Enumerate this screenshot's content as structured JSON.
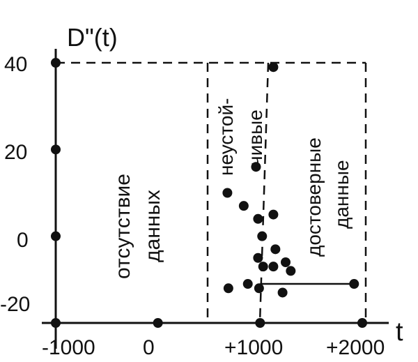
{
  "chart_data": {
    "type": "scatter",
    "ylabel": "D\"(t)",
    "xlabel": "t",
    "x_ticks": [
      "-1000",
      "0",
      "+1000",
      "+2000"
    ],
    "y_ticks": [
      "40",
      "20",
      "0",
      "-20"
    ],
    "xlim": [
      -1000,
      2000
    ],
    "ylim": [
      -20,
      40
    ],
    "grid": false,
    "regions": [
      {
        "label_lines": [
          "отсутствие",
          "данных"
        ],
        "x_range": [
          -1000,
          500
        ]
      },
      {
        "label_lines": [
          "неустой-",
          "чивые"
        ],
        "x_range": [
          500,
          1000
        ]
      },
      {
        "label_lines": [
          "достоверные",
          "данные"
        ],
        "x_range": [
          1000,
          2000
        ]
      }
    ],
    "points": [
      {
        "x": 680,
        "y": 10
      },
      {
        "x": 960,
        "y": 16
      },
      {
        "x": 1130,
        "y": 39
      },
      {
        "x": 840,
        "y": 7
      },
      {
        "x": 980,
        "y": 4
      },
      {
        "x": 1130,
        "y": 5
      },
      {
        "x": 1020,
        "y": 0
      },
      {
        "x": 1150,
        "y": -3
      },
      {
        "x": 980,
        "y": -5
      },
      {
        "x": 1030,
        "y": -7
      },
      {
        "x": 1130,
        "y": -7
      },
      {
        "x": 1250,
        "y": -6
      },
      {
        "x": 1300,
        "y": -8
      },
      {
        "x": 690,
        "y": -12
      },
      {
        "x": 880,
        "y": -11
      },
      {
        "x": 990,
        "y": -12
      },
      {
        "x": 1220,
        "y": -13
      },
      {
        "x": 1920,
        "y": -11
      },
      {
        "x": -1000,
        "y": 40
      },
      {
        "x": -1000,
        "y": 20
      },
      {
        "x": -1000,
        "y": 0
      },
      {
        "x": -1000,
        "y": -20
      },
      {
        "x": 0,
        "y": -20
      },
      {
        "x": 1000,
        "y": -20
      },
      {
        "x": 2000,
        "y": -20
      }
    ],
    "segment": {
      "x1": 1000,
      "x2": 1920,
      "y": -11
    }
  }
}
